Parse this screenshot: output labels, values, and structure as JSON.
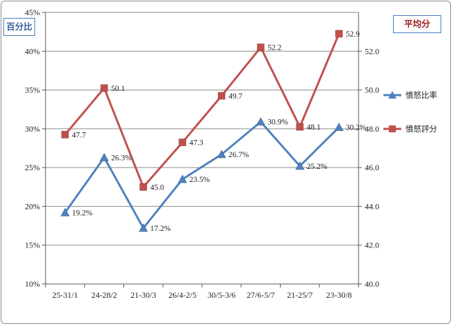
{
  "chart_data": {
    "type": "line",
    "categories": [
      "25-31/1",
      "24-28/2",
      "21-30/3",
      "26/4-2/5",
      "30/5-3/6",
      "27/6-5/7",
      "21-25/7",
      "23-30/8"
    ],
    "left_axis": {
      "title": "百分比",
      "ylim": [
        10,
        45
      ],
      "ticks": [
        "10%",
        "15%",
        "20%",
        "25%",
        "30%",
        "35%",
        "40%",
        "45%"
      ]
    },
    "right_axis": {
      "title": "平均分",
      "ylim": [
        40,
        54
      ],
      "ticks": [
        "40.0",
        "42.0",
        "44.0",
        "46.0",
        "48.0",
        "50.0",
        "52.0"
      ]
    },
    "series": [
      {
        "name": "憤怒比率",
        "axis": "left",
        "color": "#4f81bd",
        "marker": "triangle",
        "values": [
          19.2,
          26.3,
          17.2,
          23.5,
          26.7,
          30.9,
          25.2,
          30.2
        ],
        "labels": [
          "19.2%",
          "26.3%",
          "17.2%",
          "23.5%",
          "26.7%",
          "30.9%",
          "25.2%",
          "30.2%"
        ]
      },
      {
        "name": "憤怒評分",
        "axis": "right",
        "color": "#c0504d",
        "marker": "square",
        "values": [
          47.7,
          50.1,
          45.0,
          47.3,
          49.7,
          52.2,
          48.1,
          52.9
        ],
        "labels": [
          "47.7",
          "50.1",
          "45.0",
          "47.3",
          "49.7",
          "52.2",
          "48.1",
          "52.9"
        ]
      }
    ],
    "grid": true,
    "legend": "right"
  }
}
